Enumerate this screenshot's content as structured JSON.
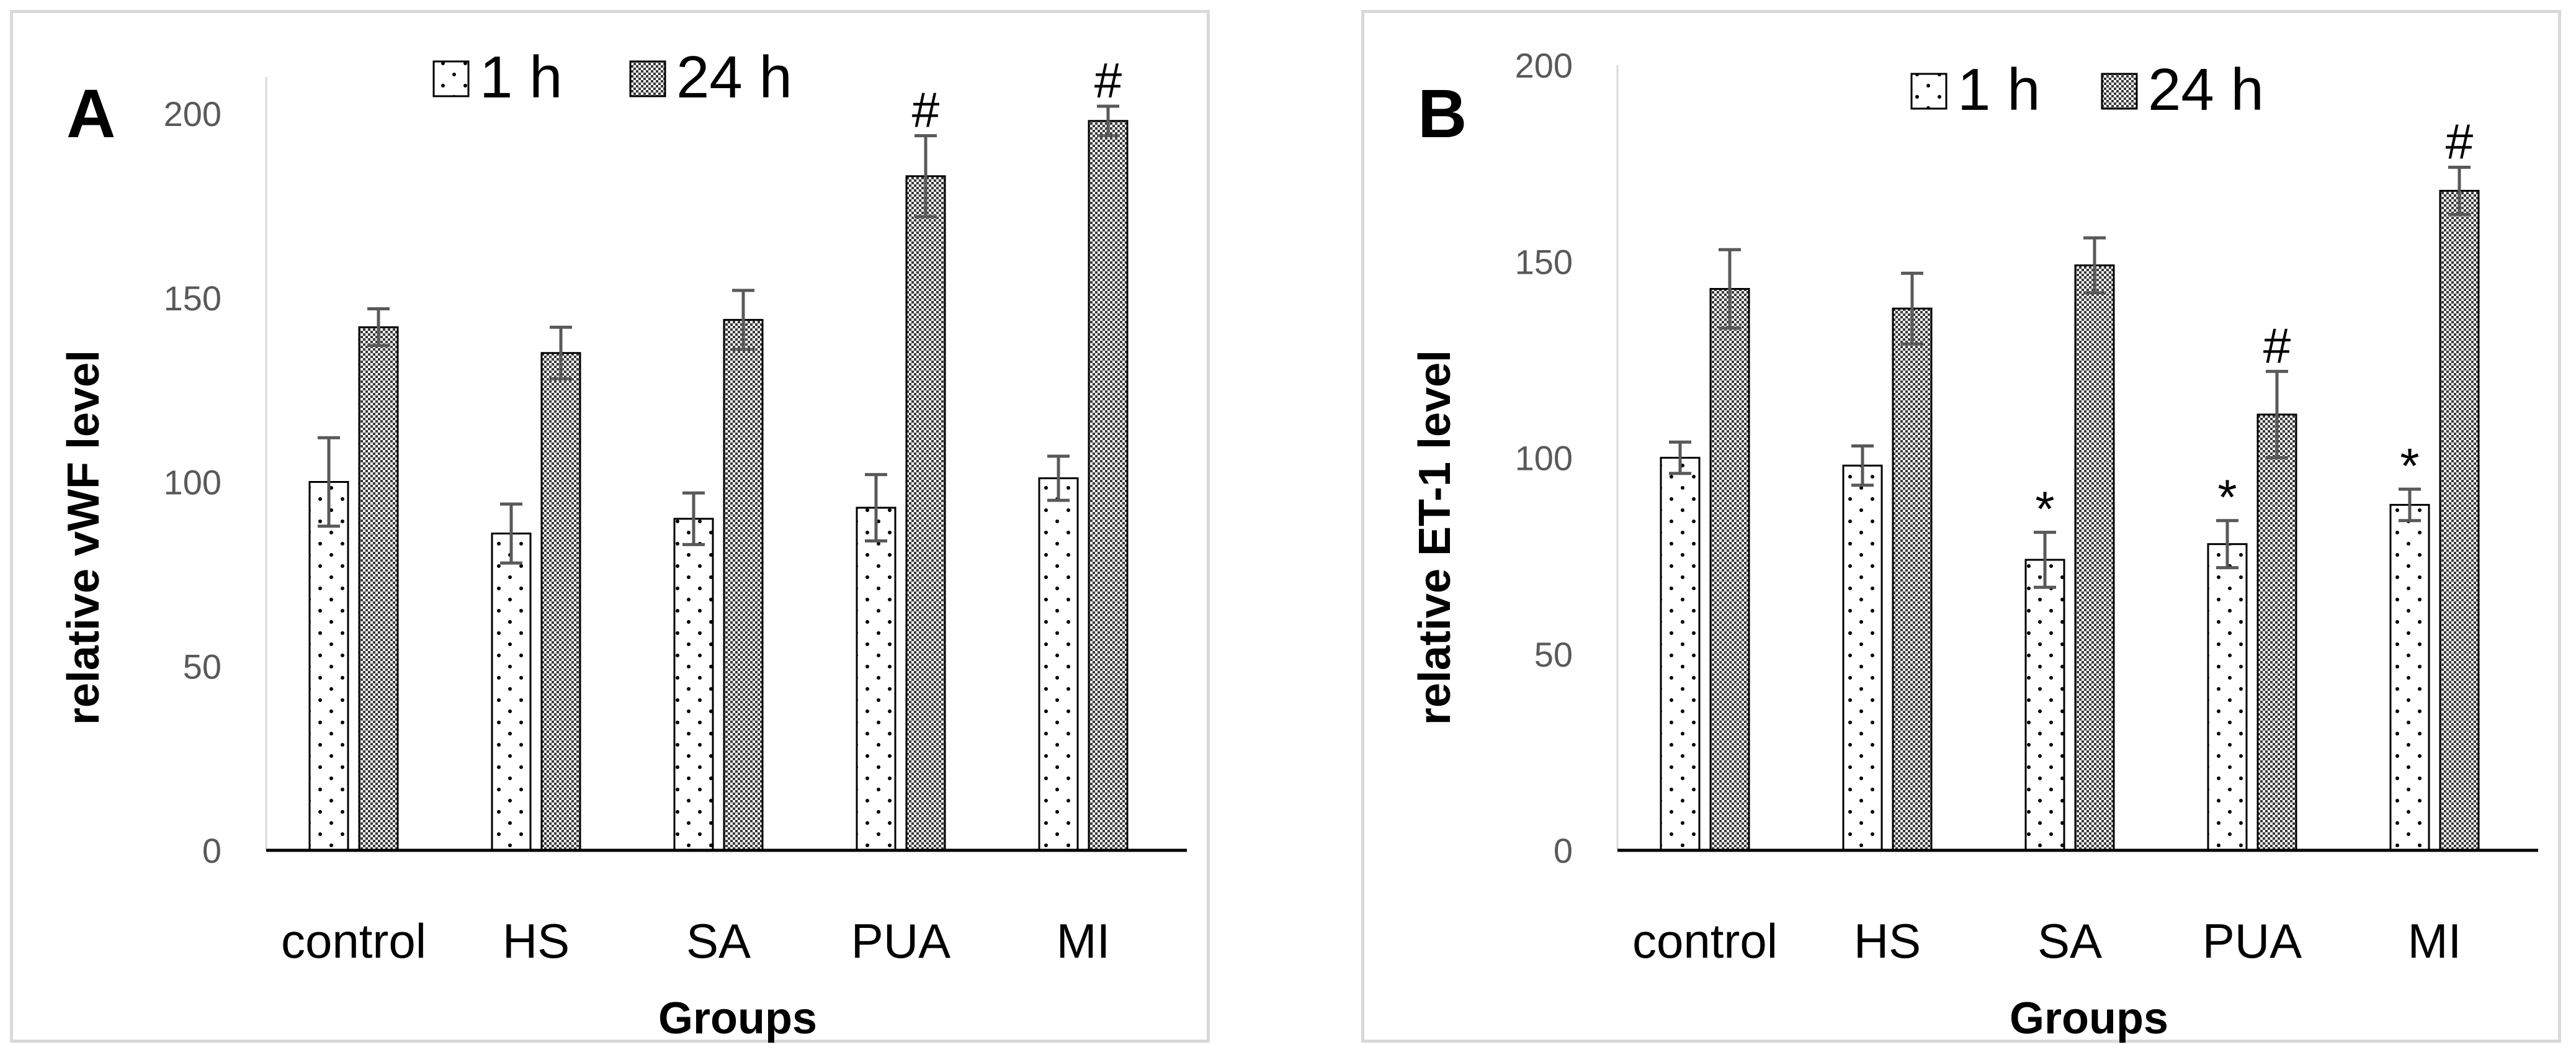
{
  "colors": {
    "axis": "#000000",
    "bar_stroke": "#000000",
    "error_bar": "#595959",
    "frame": "#d9d9d9",
    "tick_text": "#595959",
    "pattern_dots": "#000000"
  },
  "chart_data": [
    {
      "panel": "A",
      "type": "bar",
      "title": "",
      "xlabel": "Groups",
      "ylabel": "relative vWF level",
      "ylim": [
        0,
        210
      ],
      "yticks": [
        0,
        50,
        100,
        150,
        200
      ],
      "categories": [
        "control",
        "HS",
        "SA",
        "PUA",
        "MI"
      ],
      "legend_position": "top",
      "series": [
        {
          "name": "1 h",
          "pattern": "sparse-dots",
          "values": [
            100,
            86,
            90,
            93,
            101
          ],
          "errors": [
            12,
            8,
            7,
            9,
            6
          ],
          "annotations": [
            "",
            "",
            "",
            "",
            ""
          ]
        },
        {
          "name": "24 h",
          "pattern": "dense-checker",
          "values": [
            142,
            135,
            144,
            183,
            198
          ],
          "errors": [
            5,
            7,
            8,
            11,
            4
          ],
          "annotations": [
            "",
            "",
            "",
            "#",
            "#"
          ]
        }
      ]
    },
    {
      "panel": "B",
      "type": "bar",
      "title": "",
      "xlabel": "Groups",
      "ylabel": "relative ET-1 level",
      "ylim": [
        0,
        200
      ],
      "yticks": [
        0,
        50,
        100,
        150,
        200
      ],
      "categories": [
        "control",
        "HS",
        "SA",
        "PUA",
        "MI"
      ],
      "legend_position": "top",
      "series": [
        {
          "name": "1 h",
          "pattern": "sparse-dots",
          "values": [
            100,
            98,
            74,
            78,
            88
          ],
          "errors": [
            4,
            5,
            7,
            6,
            4
          ],
          "annotations": [
            "",
            "",
            "*",
            "*",
            "*"
          ]
        },
        {
          "name": "24 h",
          "pattern": "dense-checker",
          "values": [
            143,
            138,
            149,
            111,
            168
          ],
          "errors": [
            10,
            9,
            7,
            11,
            6
          ],
          "annotations": [
            "",
            "",
            "",
            "#",
            "#"
          ]
        }
      ]
    }
  ]
}
